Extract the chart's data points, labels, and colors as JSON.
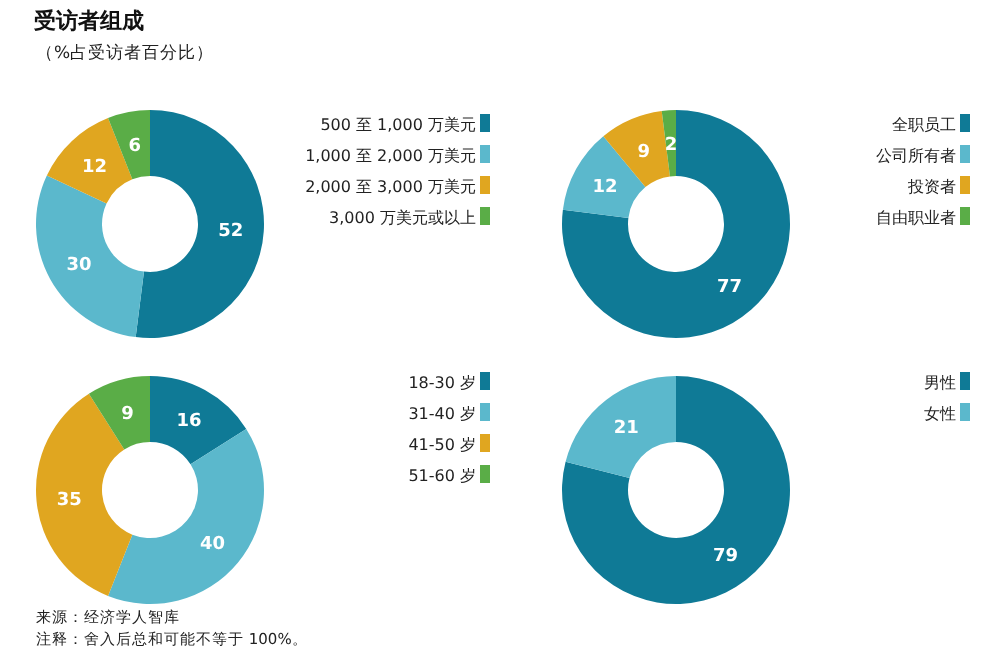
{
  "chart_data": [
    {
      "type": "donut",
      "title": "受访者组成",
      "subtitle": "（%占受访者百分比）",
      "categories": [
        "500 至 1,000 万美元",
        "1,000 至 2,000 万美元",
        "2,000 至 3,000 万美元",
        "3,000 万美元或以上"
      ],
      "values": [
        52,
        30,
        12,
        6
      ],
      "colors": [
        "#0f7a96",
        "#5bb8cc",
        "#e0a620",
        "#5aad47"
      ],
      "data_labels": true,
      "legend": "right"
    },
    {
      "type": "donut",
      "categories": [
        "全职员工",
        "公司所有者",
        "投资者",
        "自由职业者"
      ],
      "values": [
        77,
        12,
        9,
        2
      ],
      "colors": [
        "#0f7a96",
        "#5bb8cc",
        "#e0a620",
        "#5aad47"
      ],
      "data_labels": true,
      "legend": "right"
    },
    {
      "type": "donut",
      "categories": [
        "18-30 岁",
        "31-40 岁",
        "41-50 岁",
        "51-60 岁"
      ],
      "values": [
        16,
        40,
        35,
        9
      ],
      "colors": [
        "#0f7a96",
        "#5bb8cc",
        "#e0a620",
        "#5aad47"
      ],
      "data_labels": true,
      "legend": "right",
      "annotations": [
        "来源：经济学人智库",
        "注释：舍入后总和可能不等于 100%。"
      ]
    },
    {
      "type": "donut",
      "categories": [
        "男性",
        "女性"
      ],
      "values": [
        79,
        21
      ],
      "colors": [
        "#0f7a96",
        "#5bb8cc"
      ],
      "data_labels": true,
      "legend": "right"
    }
  ]
}
